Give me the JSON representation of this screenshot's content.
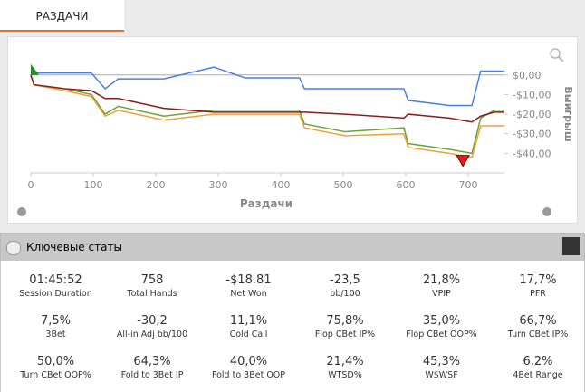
{
  "tab": {
    "title": "РАЗДАЧИ"
  },
  "chart_data": {
    "type": "line",
    "x_label": "Раздачи",
    "y_label": "Выигрыш",
    "x": [
      0,
      5,
      54,
      97,
      119,
      140,
      213,
      293,
      343,
      430,
      438,
      503,
      597,
      604,
      670,
      706,
      720,
      742,
      758
    ],
    "series": [
      {
        "color": "#4a7fe0",
        "values": [
          0,
          1,
          1,
          1,
          -7,
          -2,
          -2,
          4,
          -1.5,
          -1.5,
          -7,
          -7,
          -7,
          -13,
          -15.6,
          -15.6,
          2,
          2,
          2
        ]
      },
      {
        "color": "#6aa632",
        "values": [
          0,
          -5,
          -7,
          -10,
          -20,
          -16,
          -21,
          -18,
          -18,
          -18,
          -25,
          -29,
          -27,
          -35,
          -38,
          -40,
          -22,
          -18,
          -18
        ]
      },
      {
        "color": "#f0a040",
        "values": [
          0,
          -5,
          -8,
          -11,
          -21,
          -18,
          -23,
          -20,
          -20,
          -20,
          -27,
          -31,
          -30,
          -37,
          -40,
          -42,
          -26,
          -26,
          -26
        ]
      },
      {
        "color": "#8b1a1a",
        "values": [
          0,
          -5,
          -7,
          -8,
          -12,
          -12,
          -17,
          -19,
          -19,
          -19,
          -19,
          -20,
          -22,
          -20,
          -22,
          -24,
          -21,
          -19,
          -19
        ]
      }
    ],
    "xlim": [
      0,
      758
    ],
    "ylim": [
      -50,
      17
    ],
    "xticks": [
      0,
      100,
      200,
      300,
      400,
      500,
      600,
      700
    ],
    "yticks": [
      {
        "value": 0,
        "label": "$0,00"
      },
      {
        "value": -10,
        "label": "-$10,00"
      },
      {
        "value": -20,
        "label": "-$20,00"
      },
      {
        "value": -30,
        "label": "-$30,00"
      },
      {
        "value": -40,
        "label": "-$40,00"
      }
    ],
    "grid": false
  },
  "section": {
    "title": "Ключевые статы"
  },
  "stats": [
    {
      "value": "01:45:52",
      "label": "Session Duration"
    },
    {
      "value": "758",
      "label": "Total Hands"
    },
    {
      "value": "-$18.81",
      "label": "Net Won"
    },
    {
      "value": "-23,5",
      "label": "bb/100"
    },
    {
      "value": "21,8%",
      "label": "VPIP"
    },
    {
      "value": "17,7%",
      "label": "PFR"
    },
    {
      "value": "7,5%",
      "label": "3Bet"
    },
    {
      "value": "-30,2",
      "label": "All-in Adj bb/100"
    },
    {
      "value": "11,1%",
      "label": "Cold Call"
    },
    {
      "value": "75,8%",
      "label": "Flop CBet IP%"
    },
    {
      "value": "35,0%",
      "label": "Flop CBet OOP%"
    },
    {
      "value": "66,7%",
      "label": "Turn CBet IP%"
    },
    {
      "value": "50,0%",
      "label": "Turn CBet OOP%"
    },
    {
      "value": "64,3%",
      "label": "Fold to 3Bet IP"
    },
    {
      "value": "40,0%",
      "label": "Fold to 3Bet OOP"
    },
    {
      "value": "21,4%",
      "label": "WTSD%"
    },
    {
      "value": "45,3%",
      "label": "W$WSF"
    },
    {
      "value": "6,2%",
      "label": "4Bet Range"
    }
  ]
}
